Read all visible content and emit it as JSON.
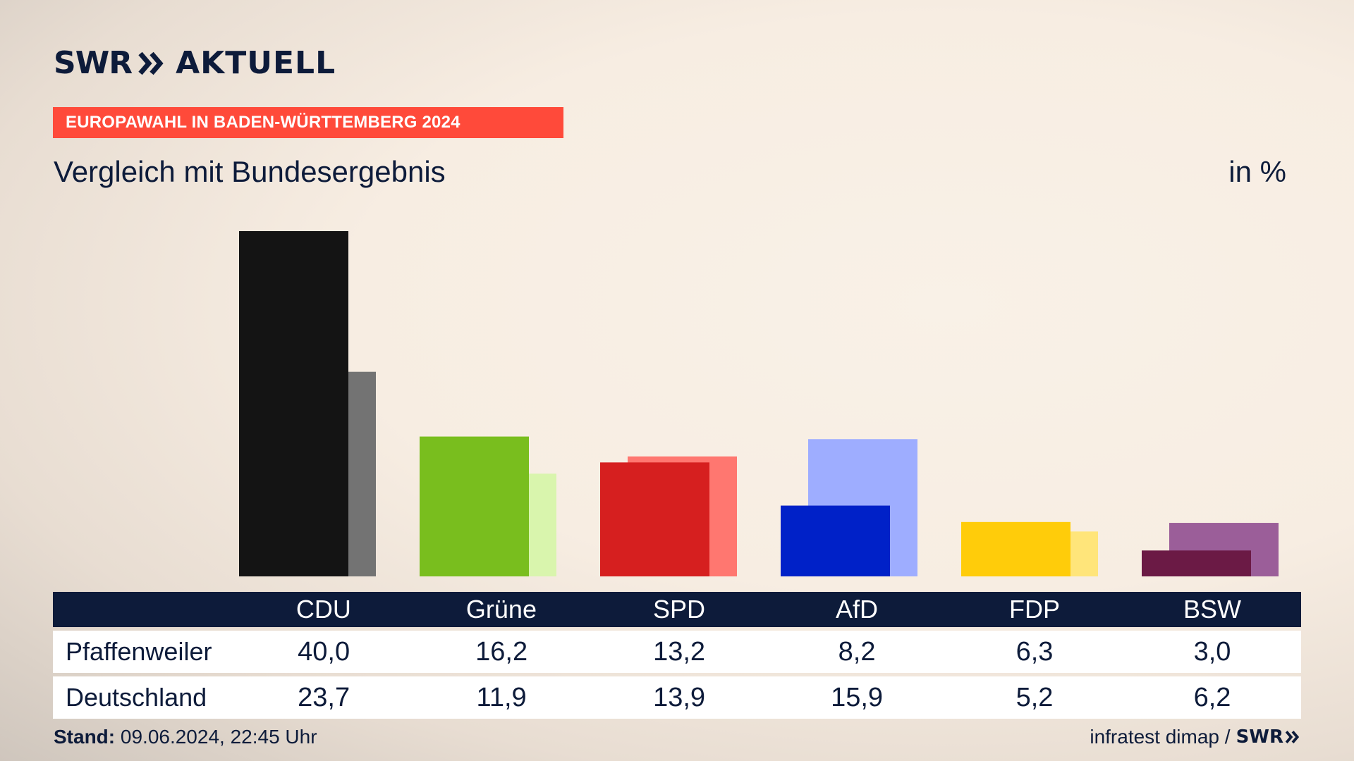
{
  "header": {
    "logo_text": "SWR",
    "logo_sub": "AKTUELL",
    "banner": "EUROPAWAHL IN BADEN-WÜRTTEMBERG 2024",
    "subtitle": "Vergleich mit Bundesergebnis",
    "unit": "in %"
  },
  "chart_data": {
    "type": "bar",
    "categories": [
      "CDU",
      "Grüne",
      "SPD",
      "AfD",
      "FDP",
      "BSW"
    ],
    "series": [
      {
        "name": "Pfaffenweiler",
        "values": [
          40.0,
          16.2,
          13.2,
          8.2,
          6.3,
          3.0
        ],
        "colors": [
          "#141414",
          "#79be1e",
          "#d61f1f",
          "#0021c8",
          "#ffcc0a",
          "#6b1a45"
        ]
      },
      {
        "name": "Deutschland",
        "values": [
          23.7,
          11.9,
          13.9,
          15.9,
          5.2,
          6.2
        ],
        "colors": [
          "#737373",
          "#d9f5ad",
          "#ff7770",
          "#9eadff",
          "#ffe57a",
          "#9b5e99"
        ]
      }
    ],
    "ylim": [
      0,
      40
    ],
    "grid": false
  },
  "table": {
    "columns": [
      "CDU",
      "Grüne",
      "SPD",
      "AfD",
      "FDP",
      "BSW"
    ],
    "rows": [
      {
        "label": "Pfaffenweiler",
        "values": [
          "40,0",
          "16,2",
          "13,2",
          "8,2",
          "6,3",
          "3,0"
        ]
      },
      {
        "label": "Deutschland",
        "values": [
          "23,7",
          "11,9",
          "13,9",
          "15,9",
          "5,2",
          "6,2"
        ]
      }
    ]
  },
  "footer": {
    "stand_label": "Stand:",
    "stand_value": "09.06.2024, 22:45 Uhr",
    "source": "infratest dimap /",
    "source_logo": "SWR"
  }
}
